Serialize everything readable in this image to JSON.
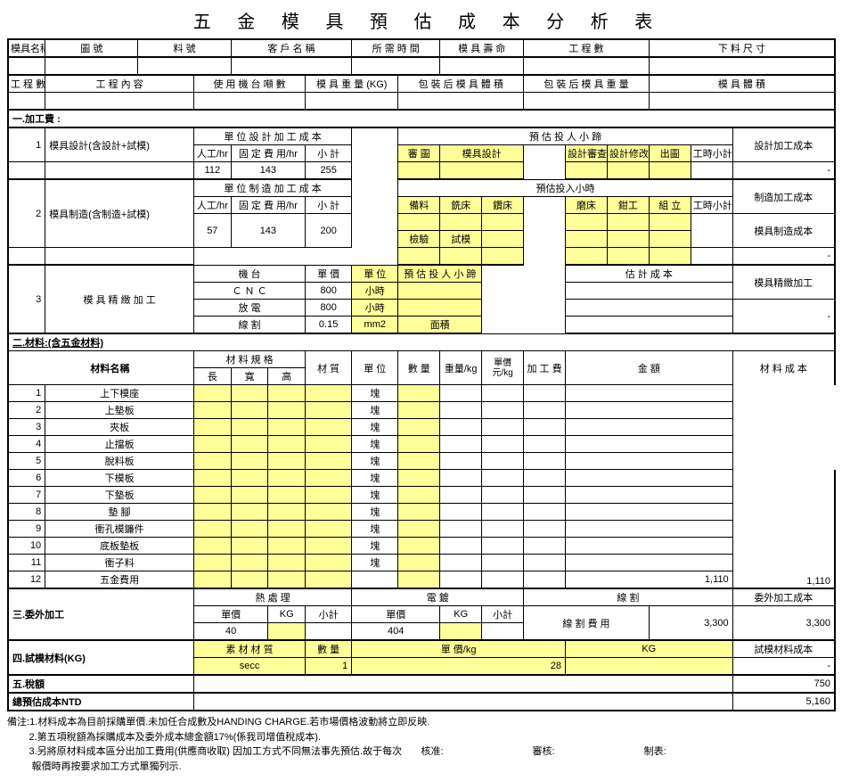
{
  "title": "五 金 模 具 預 估 成 本 分 析 表",
  "header": {
    "mold_name": "模具名稱",
    "drawing_no": "圖 號",
    "material_no": "料 號",
    "customer": "客 戶 名 稱",
    "time_needed": "所 需 時 間",
    "mold_life": "模 具 壽 命",
    "process_count": "工 程 數",
    "blank_size": "下 料 尺 寸"
  },
  "header2": {
    "process_no": "工 程 數",
    "process_content": "工 程 內 容",
    "machine_count": "使 用 機 台 噸 數",
    "mold_weight": "模 具 重 量 (KG)",
    "packed_volume": "包 裝 后 模 具 體 積",
    "packed_weight": "包 裝 后 模 具 重 量",
    "mold_volume": "模 具 體 積"
  },
  "sec1": {
    "title": "一.加工費 :",
    "row1": {
      "num": "1",
      "label": "模具設計(含設計+試模)",
      "unit_design_title": "單 位 設 計 加 工 成 本",
      "labor_hr": "人工/hr",
      "fixed_hr": "固 定 費 用/hr",
      "subtotal": "小 計",
      "v_labor": "112",
      "v_fixed": "143",
      "v_sub": "255",
      "est_hours": "預 估 投 人 小 蹄",
      "h_review": "審 圖",
      "h_design": "模具設計",
      "h_design_review": "設計審查",
      "h_design_mod": "設計修改",
      "h_output": "出圖",
      "h_hours": "工時小計",
      "cost_label": "設計加工成本"
    },
    "row2": {
      "num": "2",
      "label": "模具制造(含制造+試模)",
      "unit_mfg_title": "單 位 制 造 加 工 成 本",
      "labor_hr": "人工/hr",
      "fixed_hr": "固 定 費 用/hr",
      "subtotal": "小 計",
      "v_labor": "57",
      "v_fixed": "143",
      "v_sub": "200",
      "est_hours": "預估投入小時",
      "h_prep": "備料",
      "h_mill": "銑床",
      "h_drill": "鑽床",
      "h_grind": "磨床",
      "h_fit": "鉗工",
      "h_assemble": "組 立",
      "h_hours": "工時小計",
      "cost_label": "制造加工成本",
      "h_inspect": "檢驗",
      "h_trial": "試模",
      "cost_label2": "模具制造成本"
    },
    "row3": {
      "num": "3",
      "label": "模 具 精 緻 加 工",
      "machine": "機 台",
      "unit_price": "單 價",
      "unit": "單 位",
      "est_hours": "預 估 投 人 小 蹄",
      "est_cost": "估 計 成 本",
      "m1": "Ｃ Ｎ Ｃ",
      "p1": "800",
      "u1": "小時",
      "m2": "放 電",
      "p2": "800",
      "u2": "小時",
      "m3": "線 割",
      "p3": "0.15",
      "u3": "mm2",
      "t3": "面積",
      "cost_label": "模具精緻加工"
    }
  },
  "sec2": {
    "title": "二.材料:(含五金材料)",
    "material_name": "材料名稱",
    "spec": "材 料 規 格",
    "len": "長",
    "wid": "寬",
    "hgt": "高",
    "material": "材 質",
    "unit": "單 位",
    "qty": "數 量",
    "weight": "重量/kg",
    "unit_price": "單價\n元/kg",
    "process_fee": "加 工 費",
    "amount": "金 額",
    "cost_label": "材 料 成 本",
    "total": "1,110",
    "total2": "1,110",
    "rows": [
      {
        "n": "1",
        "name": "上下模座",
        "unit": "塊"
      },
      {
        "n": "2",
        "name": "上墊板",
        "unit": "塊"
      },
      {
        "n": "3",
        "name": "夾板",
        "unit": "塊"
      },
      {
        "n": "4",
        "name": "止擋板",
        "unit": "塊"
      },
      {
        "n": "5",
        "name": "脫料板",
        "unit": "塊"
      },
      {
        "n": "6",
        "name": "下模板",
        "unit": "塊"
      },
      {
        "n": "7",
        "name": "下墊板",
        "unit": "塊"
      },
      {
        "n": "8",
        "name": "墊 腳",
        "unit": "塊"
      },
      {
        "n": "9",
        "name": "衝孔模鐮件",
        "unit": "塊"
      },
      {
        "n": "10",
        "name": "底板墊板",
        "unit": "塊"
      },
      {
        "n": "11",
        "name": "衝子料",
        "unit": "塊"
      },
      {
        "n": "12",
        "name": "五金費用",
        "unit": ""
      }
    ]
  },
  "sec3": {
    "title": "三.委外加工",
    "heat": "熱 處 理",
    "tin": "電 鍍",
    "wire": "線 割",
    "unit_price": "單價",
    "kg": "KG",
    "subtotal": "小計",
    "wire_fee": "線 割 費 用",
    "v1": "40",
    "v2": "404",
    "total": "3,300",
    "cost_label": "委外加工成本",
    "cost_total": "3,300"
  },
  "sec4": {
    "title": "四.試模材料(KG)",
    "mat": "素 材 材 質",
    "qty": "數 量",
    "unit_price": "單 價/kg",
    "kg": "KG",
    "v_mat": "secc",
    "v_qty": "1",
    "v_price": "28",
    "cost_label": "試模材料成本"
  },
  "sec5": {
    "title": "五.稅額",
    "total": "750"
  },
  "sec6": {
    "title": "總預估成本NTD",
    "total": "5,160"
  },
  "notes": {
    "prefix": "備注:",
    "n1": "1.材料成本為目前採購單價.未加任合成數及HANDING CHARGE.若巿場價格波動將立即反映.",
    "n2": "2.第五項稅額為採購成本及委外成本總金額17%(係我司增值稅成本).",
    "n3": "3.另將原材料成本區分出加工費用(供應商收取) 因加工方式不同無法事先預估.故于每次",
    "n4": "   報價時再按要求加工方式單獨列示.",
    "sig_check": "核准:",
    "sig_audit": "審核:",
    "sig_make": "制表:"
  }
}
